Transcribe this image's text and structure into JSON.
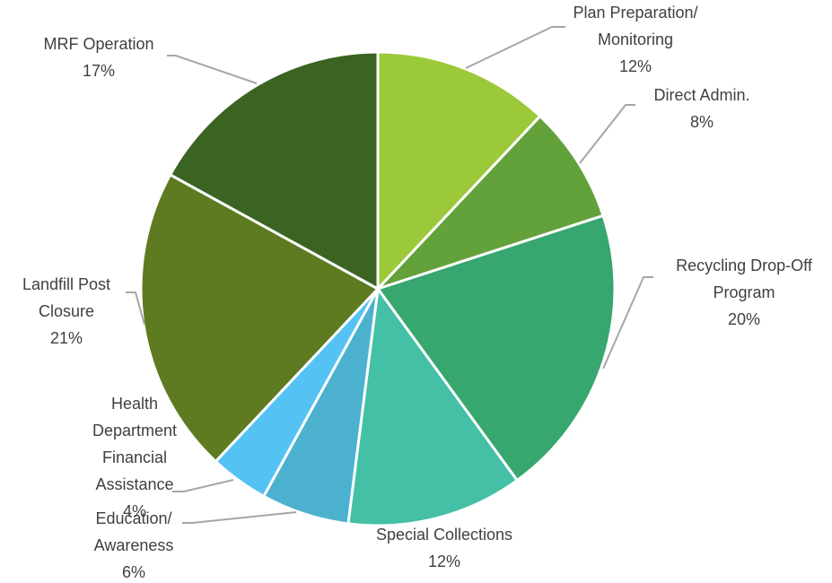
{
  "chart_data": {
    "type": "pie",
    "title": "",
    "slices": [
      {
        "label": [
          "Plan Preparation/",
          "Monitoring"
        ],
        "value": 12,
        "pct_label": "12%",
        "color": "#9bc93a"
      },
      {
        "label": [
          "Direct Admin."
        ],
        "value": 8,
        "pct_label": "8%",
        "color": "#63a23b"
      },
      {
        "label": [
          "Recycling Drop-Off",
          "Program"
        ],
        "value": 20,
        "pct_label": "20%",
        "color": "#37a66f"
      },
      {
        "label": [
          "Special Collections"
        ],
        "value": 12,
        "pct_label": "12%",
        "color": "#43c0a5"
      },
      {
        "label": [
          "Education/",
          "Awareness"
        ],
        "value": 6,
        "pct_label": "6%",
        "color": "#4bb1cf"
      },
      {
        "label": [
          "Health",
          "Department",
          "Financial",
          "Assistance"
        ],
        "value": 4,
        "pct_label": "4%",
        "color": "#55c2f4"
      },
      {
        "label": [
          "Landfill Post",
          "Closure"
        ],
        "value": 21,
        "pct_label": "21%",
        "color": "#5e7b21"
      },
      {
        "label": [
          "MRF Operation"
        ],
        "value": 17,
        "pct_label": "17%",
        "color": "#3b6423"
      }
    ]
  }
}
